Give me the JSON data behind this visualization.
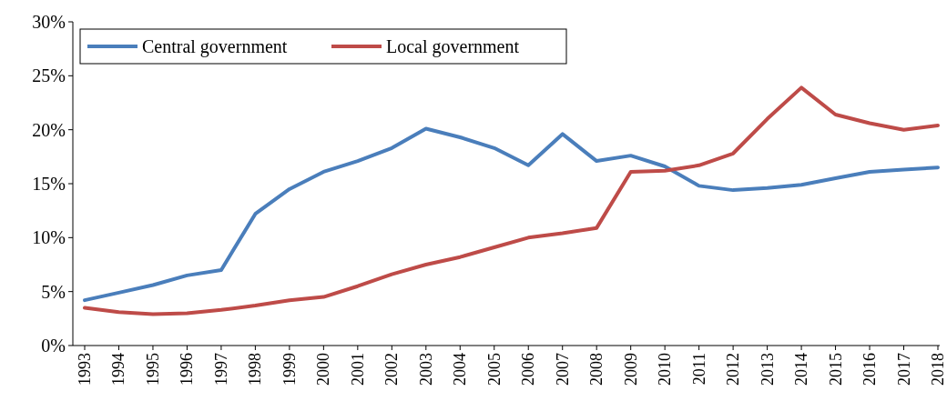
{
  "chart_data": {
    "type": "line",
    "categories": [
      "1993",
      "1994",
      "1995",
      "1996",
      "1997",
      "1998",
      "1999",
      "2000",
      "2001",
      "2002",
      "2003",
      "2004",
      "2005",
      "2006",
      "2007",
      "2008",
      "2009",
      "2010",
      "2011",
      "2012",
      "2013",
      "2014",
      "2015",
      "2016",
      "2017",
      "2018"
    ],
    "series": [
      {
        "name": "Central government",
        "color": "#4a7ebb",
        "values": [
          4.2,
          4.9,
          5.6,
          6.5,
          7.0,
          12.2,
          14.5,
          16.1,
          17.1,
          18.3,
          20.1,
          19.3,
          18.3,
          16.7,
          19.6,
          17.1,
          17.6,
          16.6,
          14.8,
          14.4,
          14.6,
          14.9,
          15.5,
          16.1,
          16.3,
          16.5
        ]
      },
      {
        "name": "Local government",
        "color": "#be4b48",
        "values": [
          3.5,
          3.1,
          2.9,
          3.0,
          3.3,
          3.7,
          4.2,
          4.5,
          5.5,
          6.6,
          7.5,
          8.2,
          9.1,
          10.0,
          10.4,
          10.9,
          16.1,
          16.2,
          16.7,
          17.8,
          21.0,
          23.9,
          21.4,
          20.6,
          20.0,
          20.4
        ]
      }
    ],
    "ylim": [
      0,
      30
    ],
    "yticks": [
      {
        "value": 0,
        "label": "0%"
      },
      {
        "value": 5,
        "label": "5%"
      },
      {
        "value": 10,
        "label": "10%"
      },
      {
        "value": 15,
        "label": "15%"
      },
      {
        "value": 20,
        "label": "20%"
      },
      {
        "value": 25,
        "label": "25%"
      },
      {
        "value": 30,
        "label": "30%"
      }
    ],
    "grid": false,
    "legend": "top left",
    "line_style": "solid"
  }
}
